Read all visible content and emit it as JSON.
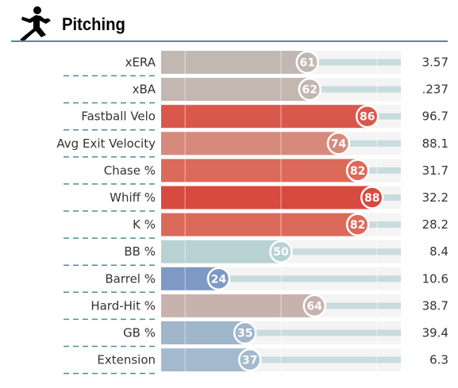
{
  "header": {
    "title": "Pitching",
    "icon": "pitcher-icon",
    "rule_color": "#4a8f98"
  },
  "chart_data": {
    "type": "bar",
    "orientation": "horizontal",
    "title": "Pitching",
    "xlim": [
      0,
      100
    ],
    "rows": [
      {
        "label": "xERA",
        "percentile": 61,
        "value": "3.57",
        "color": "#c2b8b3"
      },
      {
        "label": "xBA",
        "percentile": 62,
        "value": ".237",
        "color": "#c4b6b0"
      },
      {
        "label": "Fastball Velo",
        "percentile": 86,
        "value": "96.7",
        "color": "#d9584c"
      },
      {
        "label": "Avg Exit Velocity",
        "percentile": 74,
        "value": "88.1",
        "color": "#d68a7b"
      },
      {
        "label": "Chase %",
        "percentile": 82,
        "value": "31.7",
        "color": "#dc6a5b"
      },
      {
        "label": "Whiff %",
        "percentile": 88,
        "value": "32.2",
        "color": "#d8493f"
      },
      {
        "label": "K %",
        "percentile": 82,
        "value": "28.2",
        "color": "#dc6a5b"
      },
      {
        "label": "BB %",
        "percentile": 50,
        "value": "8.4",
        "color": "#b8d2d4"
      },
      {
        "label": "Barrel %",
        "percentile": 24,
        "value": "10.6",
        "color": "#7e99c3"
      },
      {
        "label": "Hard-Hit %",
        "percentile": 64,
        "value": "38.7",
        "color": "#c8b2ad"
      },
      {
        "label": "GB %",
        "percentile": 35,
        "value": "39.4",
        "color": "#9fb6cb"
      },
      {
        "label": "Extension",
        "percentile": 37,
        "value": "6.3",
        "color": "#a3b9ce"
      }
    ]
  }
}
